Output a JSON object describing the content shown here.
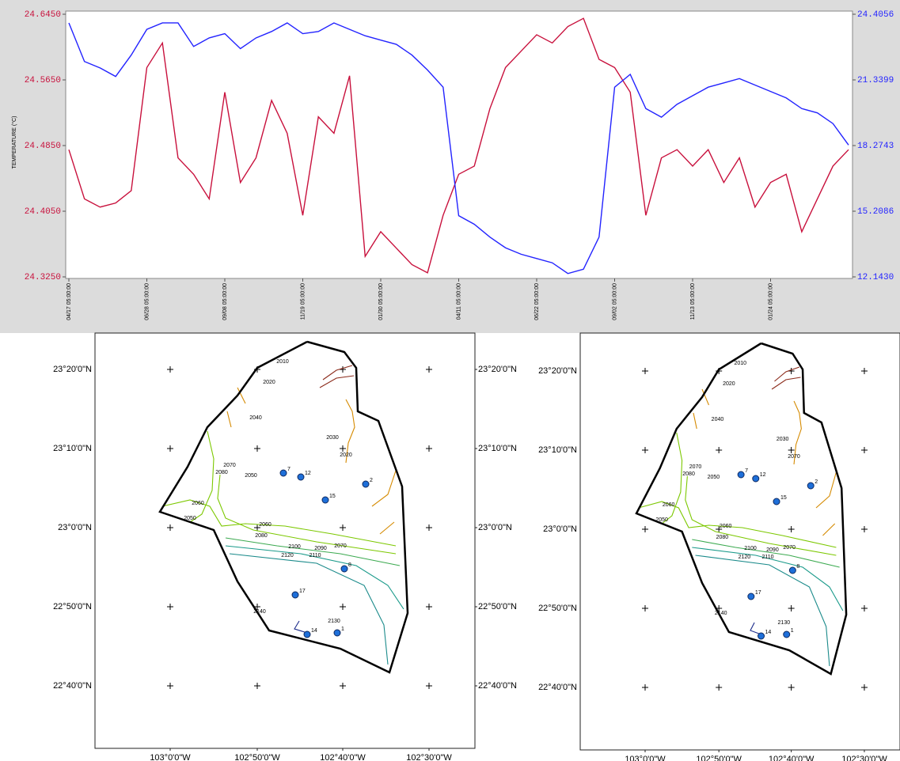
{
  "chart_data": {
    "type": "line",
    "y_label": "TEMPERATURE (°C)",
    "categories": [
      "04/17 05:00:00",
      null,
      null,
      null,
      null,
      "06/28 05:00:00",
      null,
      null,
      null,
      null,
      "09/08 05:00:00",
      null,
      null,
      null,
      null,
      "11/19 05:00:00",
      null,
      null,
      null,
      null,
      "01/30 05:00:00",
      null,
      null,
      null,
      null,
      "04/11 05:00:00",
      null,
      null,
      null,
      null,
      "06/22 05:00:00",
      null,
      null,
      null,
      null,
      "09/02 05:00:00",
      null,
      null,
      null,
      null,
      "11/13 05:00:00",
      null,
      null,
      null,
      null,
      "01/24 05:00:00",
      null,
      null,
      null,
      null,
      null
    ],
    "series": [
      {
        "color": "#c8103c",
        "axis": "y",
        "values": [
          24.48,
          24.42,
          24.41,
          24.415,
          24.43,
          24.58,
          24.61,
          24.47,
          24.45,
          24.42,
          24.55,
          24.44,
          24.47,
          24.54,
          24.5,
          24.4,
          24.52,
          24.5,
          24.57,
          24.35,
          24.38,
          24.36,
          24.34,
          24.33,
          24.4,
          24.45,
          24.46,
          24.53,
          24.58,
          24.6,
          24.62,
          24.61,
          24.63,
          24.64,
          24.59,
          24.58,
          24.55,
          24.4,
          24.47,
          24.48,
          24.46,
          24.48,
          24.44,
          24.47,
          24.41,
          24.44,
          24.45,
          24.38,
          24.42,
          24.46,
          24.48
        ]
      },
      {
        "color": "#2323ff",
        "axis": "y2",
        "values": [
          24.0,
          22.2,
          21.9,
          21.5,
          22.5,
          23.7,
          24.0,
          24.0,
          22.9,
          23.3,
          23.5,
          22.8,
          23.3,
          23.6,
          24.0,
          23.5,
          23.6,
          24.0,
          23.7,
          23.4,
          23.2,
          23.0,
          22.5,
          21.8,
          21.0,
          15.0,
          14.6,
          14.0,
          13.5,
          13.2,
          13.0,
          12.8,
          12.3,
          12.5,
          14.0,
          21.0,
          21.6,
          20.0,
          19.6,
          20.2,
          20.6,
          21.0,
          21.2,
          21.4,
          21.1,
          20.8,
          20.5,
          20.0,
          19.8,
          19.3,
          18.3
        ]
      }
    ],
    "ylim": [
      24.325,
      24.645
    ],
    "yticks": [
      {
        "value": 24.325,
        "label": "24.3250"
      },
      {
        "value": 24.405,
        "label": "24.4050"
      },
      {
        "value": 24.485,
        "label": "24.4850"
      },
      {
        "value": 24.565,
        "label": "24.5650"
      },
      {
        "value": 24.645,
        "label": "24.6450"
      }
    ],
    "y2lim": [
      12.143,
      24.4056
    ],
    "y2ticks": [
      {
        "value": 12.143,
        "label": "12.1430"
      },
      {
        "value": 15.2086,
        "label": "15.2086"
      },
      {
        "value": 18.2743,
        "label": "18.2743"
      },
      {
        "value": 21.3399,
        "label": "21.3399"
      },
      24.4056
    ]
  },
  "maps": [
    {
      "lat_labels": [
        "23°20'0\"N",
        "23°10'0\"N",
        "23°0'0\"N",
        "22°50'0\"N",
        "22°40'0\"N"
      ],
      "lon_labels": [
        "103°0'0\"W",
        "102°50'0\"W",
        "102°40'0\"W",
        "102°30'0\"W"
      ],
      "contour_labels": [
        "2010",
        "2020",
        "2040",
        "2030",
        "2020",
        "2070",
        "2080",
        "2050",
        "2060",
        "2050",
        "2060",
        "2080",
        "2070",
        "2090",
        "2100",
        "2110",
        "2120",
        "2130",
        "2140"
      ],
      "wells": [
        "7",
        "12",
        "15",
        "2",
        "8",
        "17",
        "14",
        "1"
      ]
    },
    {
      "lat_labels": [
        "23°20'0\"N",
        "23°10'0\"N",
        "23°0'0\"N",
        "22°50'0\"N",
        "22°40'0\"N"
      ],
      "lon_labels": [
        "103°0'0\"W",
        "102°50'0\"W",
        "102°40'0\"W",
        "102°30'0\"W"
      ],
      "contour_labels": [
        "2010",
        "2020",
        "2040",
        "2030",
        "2070",
        "2070",
        "2080",
        "2050",
        "2060",
        "2050",
        "2060",
        "2080",
        "2070",
        "2090",
        "2100",
        "2110",
        "2120",
        "2130",
        "2140"
      ],
      "wells": [
        "7",
        "12",
        "15",
        "2",
        "8",
        "17",
        "14",
        "1"
      ]
    }
  ]
}
